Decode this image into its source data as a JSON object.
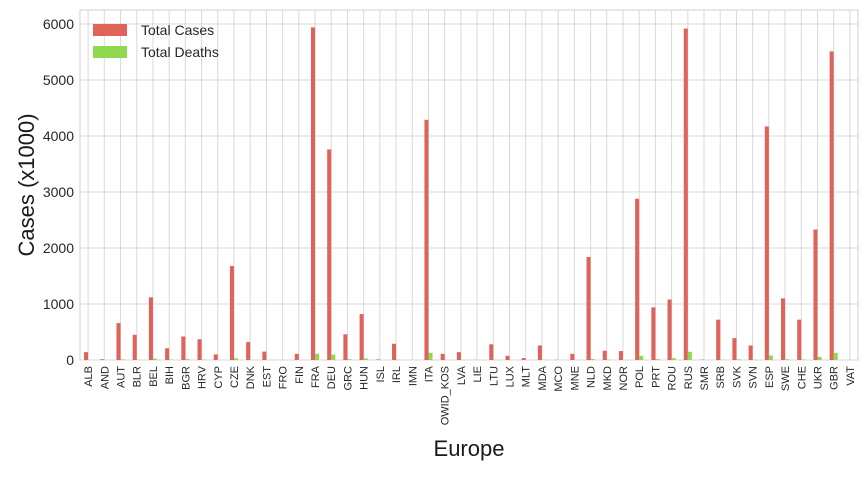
{
  "chart_data": {
    "type": "bar",
    "xlabel": "Europe",
    "ylabel": "Cases (x1000)",
    "ylim": [
      0,
      6250
    ],
    "yticks": [
      0,
      1000,
      2000,
      3000,
      4000,
      5000,
      6000
    ],
    "grid": true,
    "legend_position": "top-left",
    "categories": [
      "ALB",
      "AND",
      "AUT",
      "BLR",
      "BEL",
      "BIH",
      "BGR",
      "HRV",
      "CYP",
      "CZE",
      "DNK",
      "EST",
      "FRO",
      "FIN",
      "FRA",
      "DEU",
      "GRC",
      "HUN",
      "ISL",
      "IRL",
      "IMN",
      "ITA",
      "OWID_KOS",
      "LVA",
      "LIE",
      "LTU",
      "LUX",
      "MLT",
      "MDA",
      "MCO",
      "MNE",
      "NLD",
      "MKD",
      "NOR",
      "POL",
      "PRT",
      "ROU",
      "RUS",
      "SMR",
      "SRB",
      "SVK",
      "SVN",
      "ESP",
      "SWE",
      "CHE",
      "UKR",
      "GBR",
      "VAT"
    ],
    "series": [
      {
        "name": "Total Cases",
        "color": "#e0635a",
        "values": [
          140,
          14,
          660,
          450,
          1120,
          210,
          420,
          370,
          100,
          1680,
          320,
          150,
          1,
          110,
          5940,
          3760,
          460,
          820,
          10,
          290,
          1,
          4290,
          110,
          140,
          3,
          280,
          75,
          35,
          260,
          3,
          110,
          1840,
          165,
          160,
          2880,
          940,
          1080,
          5920,
          6,
          720,
          390,
          260,
          4170,
          1100,
          720,
          2330,
          5510,
          1
        ]
      },
      {
        "name": "Total Deaths",
        "color": "#8fd84f",
        "values": [
          2,
          0,
          11,
          3,
          25,
          9,
          17,
          8,
          1,
          30,
          2,
          1,
          0,
          1,
          111,
          97,
          14,
          29,
          0,
          5,
          0,
          128,
          2,
          3,
          0,
          4,
          1,
          0,
          6,
          0,
          2,
          18,
          6,
          1,
          74,
          17,
          34,
          146,
          0,
          7,
          12,
          5,
          81,
          14,
          10,
          56,
          128,
          0
        ]
      }
    ]
  }
}
